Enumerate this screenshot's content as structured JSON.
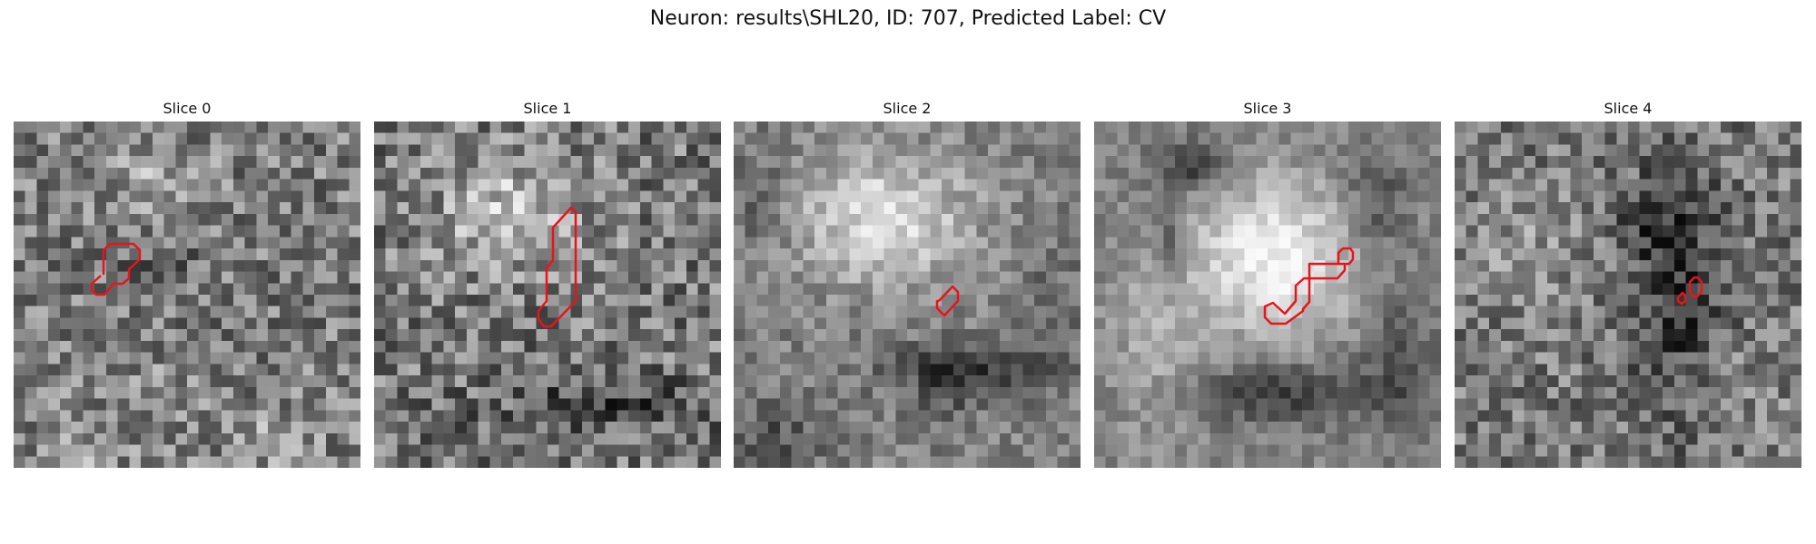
{
  "figure": {
    "title": "Neuron: results\\SHL20, ID: 707, Predicted Label: CV"
  },
  "colors": {
    "contour": "#e8141c",
    "background": "#ffffff"
  },
  "slices": [
    {
      "title": "Slice 0"
    },
    {
      "title": "Slice 1"
    },
    {
      "title": "Slice 2"
    },
    {
      "title": "Slice 3"
    },
    {
      "title": "Slice 4"
    }
  ]
}
